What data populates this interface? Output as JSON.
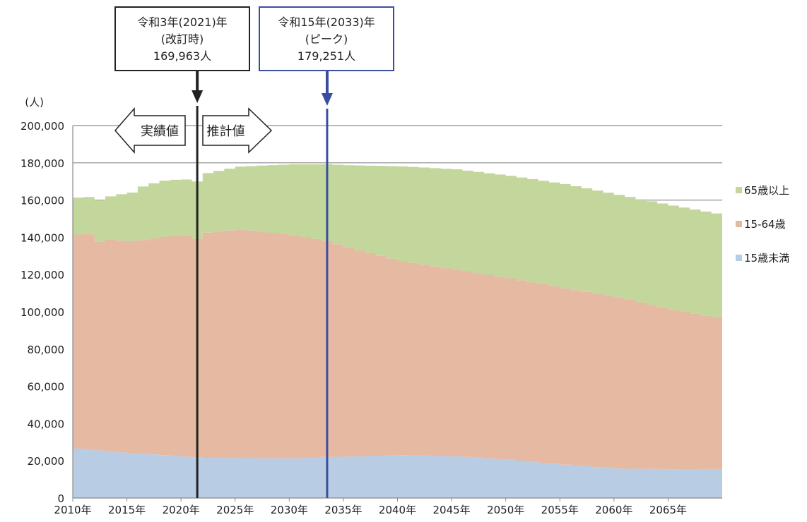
{
  "chart_data": {
    "type": "area",
    "stacked": true,
    "ylabel": "(人)",
    "ylim": [
      0,
      200000
    ],
    "yticks": [
      0,
      20000,
      40000,
      60000,
      80000,
      100000,
      120000,
      140000,
      160000,
      180000,
      200000
    ],
    "ytick_labels": [
      "0",
      "20,000",
      "40,000",
      "60,000",
      "80,000",
      "100,000",
      "120,000",
      "140,000",
      "160,000",
      "180,000",
      "200,000"
    ],
    "xlim": [
      2010,
      2069
    ],
    "xtick_years": [
      2010,
      2015,
      2020,
      2025,
      2030,
      2035,
      2040,
      2045,
      2050,
      2055,
      2060,
      2065
    ],
    "xtick_labels": [
      "2010年",
      "2015年",
      "2020年",
      "2025年",
      "2030年",
      "2035年",
      "2040年",
      "2045年",
      "2050年",
      "2055年",
      "2060年",
      "2065年"
    ],
    "grid": true,
    "legend_position": "right",
    "series": [
      {
        "name": "15歳未満",
        "color": "#b8cce4",
        "x": [
          2010,
          2011,
          2012,
          2013,
          2014,
          2015,
          2016,
          2017,
          2018,
          2019,
          2020,
          2021,
          2022,
          2025,
          2030,
          2033,
          2035,
          2040,
          2045,
          2050,
          2055,
          2060,
          2065,
          2069
        ],
        "values": [
          26500,
          26200,
          25500,
          25000,
          24500,
          24000,
          23700,
          23400,
          23000,
          22600,
          22200,
          21700,
          21600,
          21400,
          21300,
          22000,
          22300,
          23000,
          22400,
          20500,
          17900,
          15800,
          15500,
          15600
        ]
      },
      {
        "name": "15-64歳",
        "color": "#e6b9a3",
        "x": [
          2010,
          2011,
          2012,
          2013,
          2014,
          2015,
          2016,
          2017,
          2018,
          2019,
          2020,
          2021,
          2022,
          2025,
          2030,
          2033,
          2035,
          2040,
          2045,
          2050,
          2055,
          2060,
          2065,
          2069
        ],
        "values": [
          115000,
          115500,
          112300,
          113800,
          113700,
          114000,
          114800,
          116100,
          117000,
          118100,
          118800,
          117600,
          120900,
          122800,
          119900,
          116000,
          112100,
          104100,
          100100,
          97500,
          94700,
          92000,
          85500,
          81400
        ]
      },
      {
        "name": "65歳以上",
        "color": "#c3d69b",
        "x": [
          2010,
          2011,
          2012,
          2013,
          2014,
          2015,
          2016,
          2017,
          2018,
          2019,
          2020,
          2021,
          2022,
          2025,
          2030,
          2033,
          2035,
          2040,
          2045,
          2050,
          2055,
          2060,
          2065,
          2069
        ],
        "values": [
          19800,
          19900,
          22200,
          23200,
          24900,
          26000,
          28800,
          29500,
          30400,
          30200,
          30000,
          30663,
          32000,
          33800,
          38000,
          41251,
          44300,
          51000,
          54000,
          55000,
          56000,
          55000,
          56000,
          55800
        ]
      }
    ],
    "annotations": [
      {
        "year": 2021,
        "lines": [
          "令和3年(2021)年",
          "(改訂時)",
          "169,963人"
        ],
        "color": "#222222"
      },
      {
        "year": 2033,
        "lines": [
          "令和15年(2033)年",
          "(ピーク)",
          "179,251人"
        ],
        "color": "#3a4ea0"
      }
    ],
    "arrows": [
      {
        "label": "実績値",
        "direction": "left"
      },
      {
        "label": "推計値",
        "direction": "right"
      }
    ]
  }
}
